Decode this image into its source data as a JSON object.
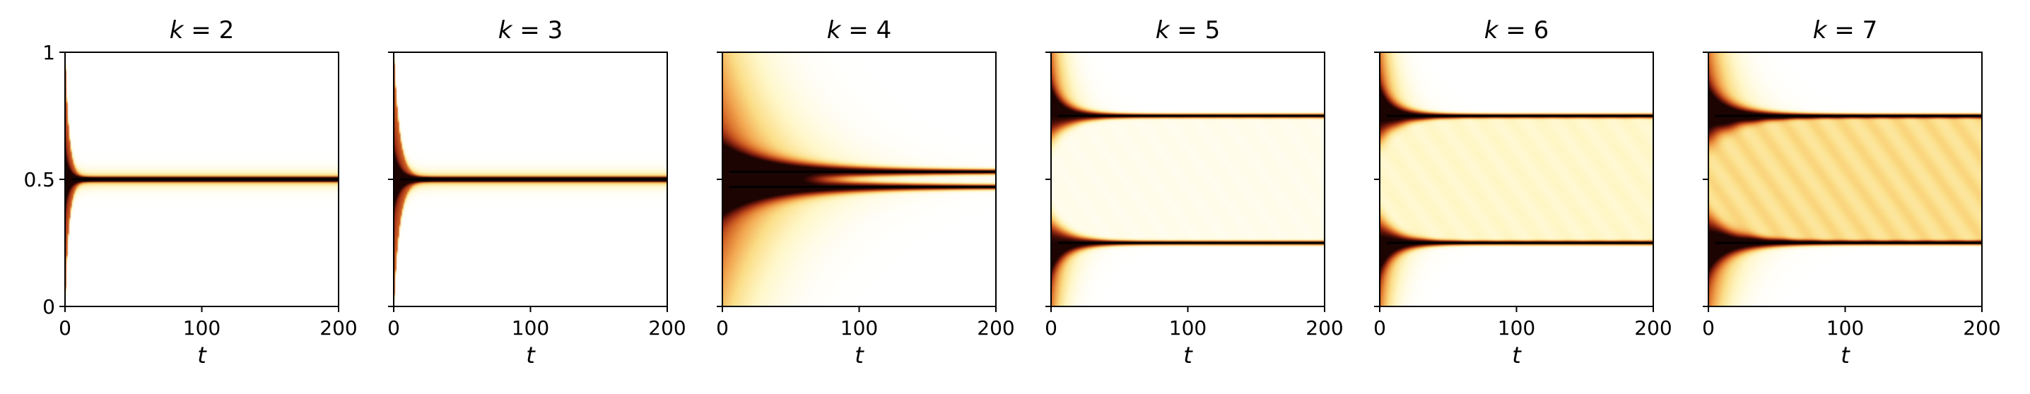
{
  "chart_data": [
    {
      "type": "heatmap",
      "title": "k = 2",
      "title_var": "k",
      "title_val": "2",
      "xlabel": "t",
      "xlim": [
        0,
        200
      ],
      "ylim": [
        0,
        1
      ],
      "xticks": [
        "0",
        "100",
        "200"
      ],
      "yticks": [
        "0",
        "0.5",
        "1"
      ],
      "show_yticklabels": true,
      "attractors": [
        0.5
      ],
      "relax_time": 8,
      "spread": 0.0
    },
    {
      "type": "heatmap",
      "title": "k = 3",
      "title_var": "k",
      "title_val": "3",
      "xlabel": "t",
      "xlim": [
        0,
        200
      ],
      "ylim": [
        0,
        1
      ],
      "xticks": [
        "0",
        "100",
        "200"
      ],
      "yticks": [
        "0",
        "0.5",
        "1"
      ],
      "show_yticklabels": false,
      "attractors": [
        0.5
      ],
      "relax_time": 12,
      "spread": 0.0
    },
    {
      "type": "heatmap",
      "title": "k = 4",
      "title_var": "k",
      "title_val": "4",
      "xlabel": "t",
      "xlim": [
        0,
        200
      ],
      "ylim": [
        0,
        1
      ],
      "xticks": [
        "0",
        "100",
        "200"
      ],
      "yticks": [
        "0",
        "0.5",
        "1"
      ],
      "show_yticklabels": false,
      "attractors": [
        0.47,
        0.53
      ],
      "relax_time": 150,
      "spread": 0.06
    },
    {
      "type": "heatmap",
      "title": "k = 5",
      "title_var": "k",
      "title_val": "5",
      "xlabel": "t",
      "xlim": [
        0,
        200
      ],
      "ylim": [
        0,
        1
      ],
      "xticks": [
        "0",
        "100",
        "200"
      ],
      "yticks": [
        "0",
        "0.5",
        "1"
      ],
      "show_yticklabels": false,
      "attractors": [
        0.25,
        0.75
      ],
      "relax_time": 40,
      "spread": 0.08
    },
    {
      "type": "heatmap",
      "title": "k = 6",
      "title_var": "k",
      "title_val": "6",
      "xlabel": "t",
      "xlim": [
        0,
        200
      ],
      "ylim": [
        0,
        1
      ],
      "xticks": [
        "0",
        "100",
        "200"
      ],
      "yticks": [
        "0",
        "0.5",
        "1"
      ],
      "show_yticklabels": false,
      "attractors": [
        0.25,
        0.75
      ],
      "relax_time": 40,
      "spread": 0.22
    },
    {
      "type": "heatmap",
      "title": "k = 7",
      "title_var": "k",
      "title_val": "7",
      "xlabel": "t",
      "xlim": [
        0,
        200
      ],
      "ylim": [
        0,
        1
      ],
      "xticks": [
        "0",
        "100",
        "200"
      ],
      "yticks": [
        "0",
        "0.5",
        "1"
      ],
      "show_yticklabels": false,
      "attractors": [
        0.25,
        0.75
      ],
      "relax_time": 60,
      "spread": 0.45
    }
  ],
  "colors": {
    "background": "#ffffff",
    "axis": "#000000",
    "attractor_line": "#000000",
    "colormap": [
      "#ffffff",
      "#fff7c8",
      "#fbdd86",
      "#f2a64f",
      "#d66a28",
      "#a33316",
      "#5e1309",
      "#1c0402"
    ]
  }
}
